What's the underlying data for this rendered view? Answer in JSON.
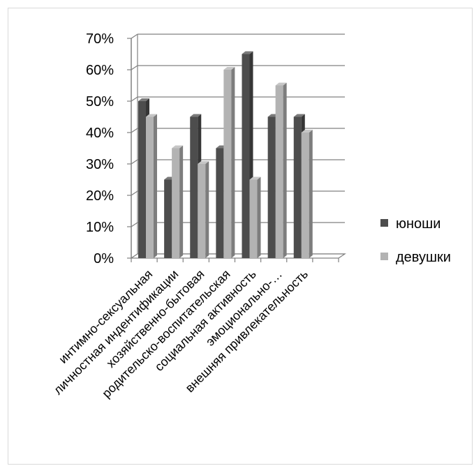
{
  "chart_data": {
    "type": "bar",
    "categories": [
      "интимно-сексуальная",
      "личностная индентификации",
      "хозяйственно-бытовая",
      "родительско-воспитательская",
      "социальная активность",
      "эмоционально-…",
      "внешняя привлекательность"
    ],
    "series": [
      {
        "name": "юноши",
        "values": [
          50,
          25,
          45,
          35,
          65,
          45,
          45
        ],
        "color": "#4d4d4d"
      },
      {
        "name": "девушки",
        "values": [
          45,
          35,
          30,
          60,
          25,
          55,
          40
        ],
        "color": "#b3b3b3"
      }
    ],
    "y_ticks": [
      "0%",
      "10%",
      "20%",
      "30%",
      "40%",
      "50%",
      "60%",
      "70%"
    ],
    "ylim": [
      0,
      70
    ],
    "grid": true,
    "legend_position": "right",
    "style": "3d-clustered-column"
  }
}
